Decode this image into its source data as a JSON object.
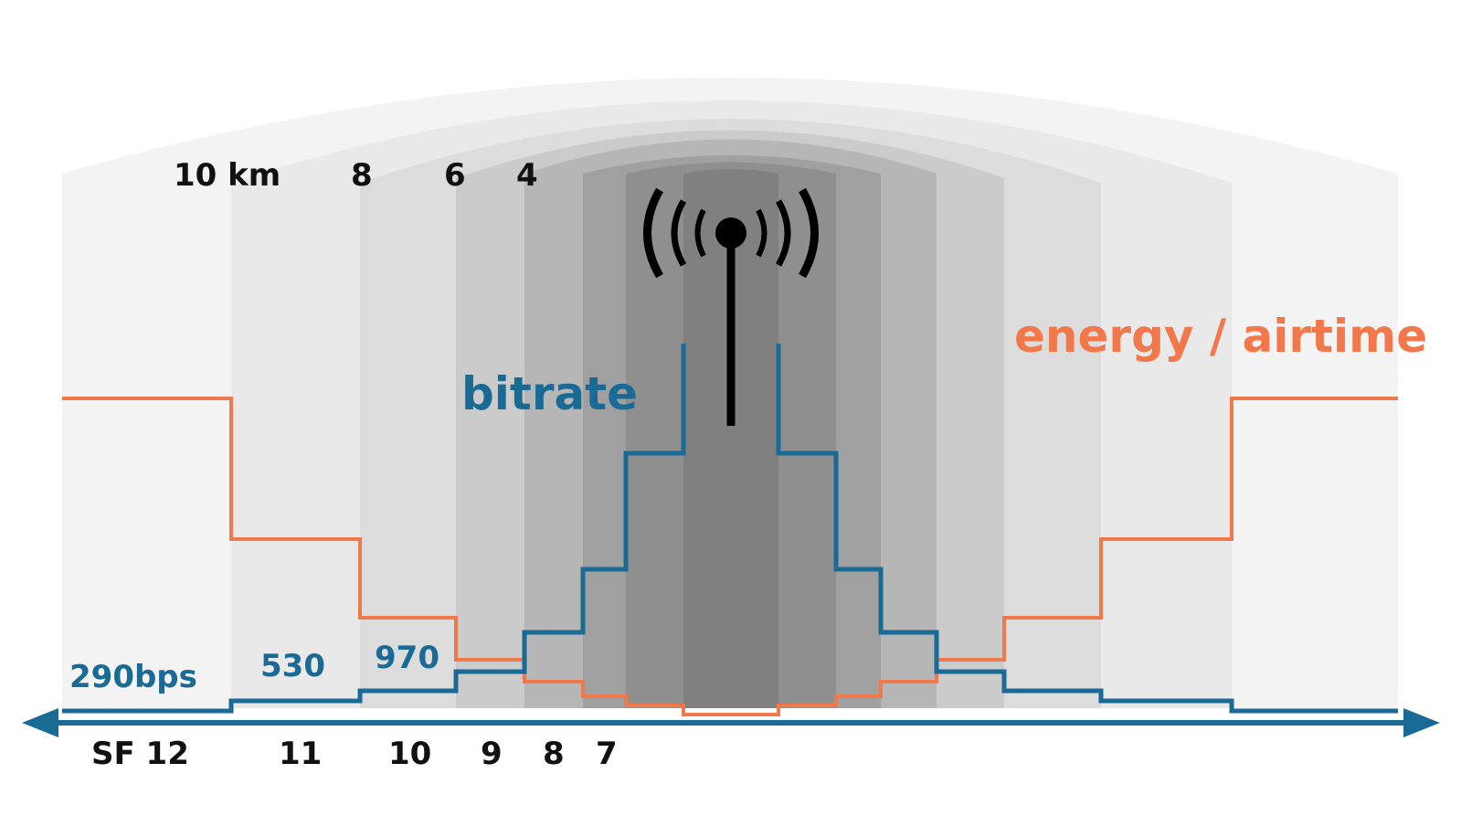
{
  "colors": {
    "bitrate": "#1a6a96",
    "energy": "#f0784a",
    "axis": "#1a6a96",
    "antenna": "#000000",
    "text": "#111111"
  },
  "labels": {
    "bitrate": "bitrate",
    "energy": "energy / airtime"
  },
  "distances": [
    "10 km",
    "8",
    "6",
    "4"
  ],
  "spreading_factors": [
    "SF 12",
    "11",
    "10",
    "9",
    "8",
    "7"
  ],
  "bitrates": [
    "290bps",
    "530",
    "970"
  ],
  "icons": {
    "antenna": "antenna-icon",
    "axis": "double-arrow-axis"
  },
  "zones": [
    {
      "name": "SF 12",
      "bitrate_level": 1,
      "energy_level": 6
    },
    {
      "name": "SF 11",
      "bitrate_level": 2,
      "energy_level": 4
    },
    {
      "name": "SF 10",
      "bitrate_level": 3,
      "energy_level": 3
    },
    {
      "name": "SF 9",
      "bitrate_level": 4,
      "energy_level": 2
    },
    {
      "name": "SF 8",
      "bitrate_level": 5,
      "energy_level": 1
    },
    {
      "name": "SF 7",
      "bitrate_level": 6,
      "energy_level": 0
    }
  ]
}
